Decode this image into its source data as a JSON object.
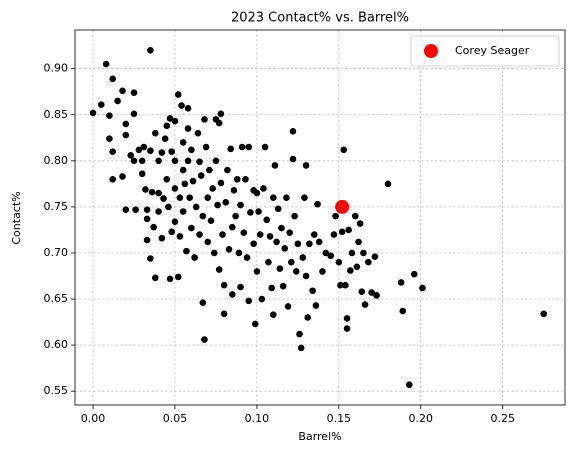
{
  "chart_data": {
    "type": "scatter",
    "title": "2023 Contact% vs. Barrel%",
    "x_label": "Barrel%",
    "y_label": "Contact%",
    "xlim": [
      -0.011,
      0.288
    ],
    "ylim": [
      0.535,
      0.942
    ],
    "xticks": [
      {
        "value": 0.0,
        "label": "0.00"
      },
      0.05,
      {
        "value": 0.1,
        "label": "0.10"
      },
      0.15,
      {
        "value": 0.2,
        "label": "0.20"
      },
      0.25
    ],
    "yticks": [
      0.55,
      {
        "value": 0.6,
        "label": "0.60"
      },
      0.65,
      {
        "value": 0.7,
        "label": "0.70"
      },
      0.75,
      {
        "value": 0.8,
        "label": "0.80"
      },
      0.85,
      {
        "value": 0.9,
        "label": "0.90"
      }
    ],
    "grid": true,
    "legend": "upper right",
    "series": [
      {
        "color": "#000000",
        "x": [
          0.0,
          0.005,
          0.008,
          0.01,
          0.012,
          0.01,
          0.012,
          0.012,
          0.015,
          0.018,
          0.018,
          0.02,
          0.02,
          0.02,
          0.023,
          0.025,
          0.025,
          0.025,
          0.026,
          0.028,
          0.03,
          0.03,
          0.031,
          0.032,
          0.033,
          0.033,
          0.033,
          0.035,
          0.035,
          0.035,
          0.036,
          0.037,
          0.038,
          0.038,
          0.04,
          0.04,
          0.04,
          0.042,
          0.042,
          0.043,
          0.044,
          0.045,
          0.045,
          0.046,
          0.047,
          0.047,
          0.048,
          0.048,
          0.05,
          0.05,
          0.05,
          0.05,
          0.052,
          0.052,
          0.053,
          0.053,
          0.054,
          0.055,
          0.055,
          0.055,
          0.056,
          0.057,
          0.058,
          0.058,
          0.058,
          0.059,
          0.06,
          0.06,
          0.061,
          0.062,
          0.063,
          0.064,
          0.065,
          0.065,
          0.066,
          0.067,
          0.067,
          0.068,
          0.068,
          0.069,
          0.07,
          0.07,
          0.071,
          0.072,
          0.073,
          0.074,
          0.075,
          0.075,
          0.076,
          0.077,
          0.077,
          0.078,
          0.078,
          0.079,
          0.08,
          0.08,
          0.081,
          0.082,
          0.083,
          0.084,
          0.085,
          0.085,
          0.086,
          0.087,
          0.088,
          0.089,
          0.09,
          0.09,
          0.091,
          0.092,
          0.093,
          0.094,
          0.095,
          0.095,
          0.096,
          0.098,
          0.098,
          0.099,
          0.1,
          0.1,
          0.101,
          0.102,
          0.103,
          0.104,
          0.105,
          0.106,
          0.107,
          0.108,
          0.109,
          0.11,
          0.11,
          0.111,
          0.112,
          0.113,
          0.114,
          0.115,
          0.116,
          0.117,
          0.118,
          0.119,
          0.12,
          0.121,
          0.122,
          0.122,
          0.123,
          0.124,
          0.125,
          0.126,
          0.127,
          0.128,
          0.129,
          0.13,
          0.13,
          0.131,
          0.132,
          0.134,
          0.135,
          0.136,
          0.137,
          0.138,
          0.14,
          0.142,
          0.145,
          0.147,
          0.148,
          0.15,
          0.151,
          0.152,
          0.153,
          0.154,
          0.155,
          0.155,
          0.156,
          0.157,
          0.158,
          0.16,
          0.161,
          0.162,
          0.163,
          0.164,
          0.165,
          0.166,
          0.168,
          0.17,
          0.172,
          0.173,
          0.18,
          0.188,
          0.189,
          0.193,
          0.196,
          0.201,
          0.275
        ],
        "values": [
          0.852,
          0.861,
          0.905,
          0.849,
          0.889,
          0.824,
          0.81,
          0.78,
          0.865,
          0.876,
          0.783,
          0.84,
          0.828,
          0.747,
          0.806,
          0.874,
          0.851,
          0.8,
          0.747,
          0.812,
          0.786,
          0.8,
          0.815,
          0.769,
          0.747,
          0.737,
          0.714,
          0.92,
          0.811,
          0.694,
          0.766,
          0.728,
          0.83,
          0.673,
          0.8,
          0.765,
          0.745,
          0.716,
          0.809,
          0.759,
          0.824,
          0.838,
          0.78,
          0.75,
          0.846,
          0.672,
          0.723,
          0.81,
          0.843,
          0.77,
          0.8,
          0.734,
          0.872,
          0.674,
          0.76,
          0.718,
          0.86,
          0.82,
          0.79,
          0.745,
          0.775,
          0.702,
          0.857,
          0.835,
          0.8,
          0.76,
          0.727,
          0.812,
          0.778,
          0.695,
          0.75,
          0.83,
          0.799,
          0.72,
          0.784,
          0.74,
          0.646,
          0.845,
          0.606,
          0.815,
          0.76,
          0.712,
          0.79,
          0.735,
          0.77,
          0.7,
          0.845,
          0.8,
          0.752,
          0.841,
          0.682,
          0.851,
          0.776,
          0.72,
          0.665,
          0.634,
          0.755,
          0.79,
          0.704,
          0.813,
          0.728,
          0.655,
          0.768,
          0.74,
          0.78,
          0.7,
          0.752,
          0.663,
          0.815,
          0.722,
          0.78,
          0.695,
          0.648,
          0.815,
          0.744,
          0.71,
          0.768,
          0.623,
          0.765,
          0.68,
          0.745,
          0.72,
          0.65,
          0.77,
          0.815,
          0.736,
          0.69,
          0.718,
          0.662,
          0.76,
          0.633,
          0.795,
          0.712,
          0.748,
          0.683,
          0.727,
          0.664,
          0.705,
          0.76,
          0.642,
          0.722,
          0.69,
          0.832,
          0.802,
          0.74,
          0.68,
          0.71,
          0.612,
          0.597,
          0.695,
          0.76,
          0.795,
          0.675,
          0.63,
          0.71,
          0.659,
          0.72,
          0.643,
          0.753,
          0.712,
          0.68,
          0.7,
          0.697,
          0.72,
          0.74,
          0.69,
          0.665,
          0.723,
          0.812,
          0.665,
          0.629,
          0.618,
          0.725,
          0.681,
          0.7,
          0.74,
          0.685,
          0.712,
          0.732,
          0.658,
          0.7,
          0.644,
          0.69,
          0.657,
          0.696,
          0.654,
          0.775,
          0.668,
          0.637,
          0.557,
          0.677,
          0.662,
          0.634
        ]
      },
      {
        "name": "Corey Seager",
        "color": "#ff0000",
        "x": [
          0.152
        ],
        "values": [
          0.75
        ]
      }
    ]
  }
}
